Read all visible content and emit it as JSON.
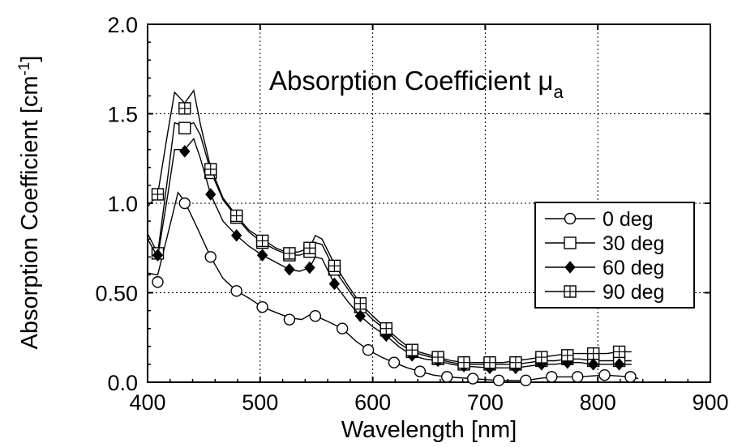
{
  "chart_data": {
    "type": "line",
    "title": "Absorption Coefficient",
    "title_symbol": "μ",
    "title_subscript": "a",
    "xlabel": "Wavelength [nm]",
    "ylabel": "Absorption Coefficient [cm",
    "ylabel_superscript": "-1",
    "ylabel_close": "]",
    "xlim": [
      400,
      900
    ],
    "ylim": [
      0,
      2.0
    ],
    "x_ticks": [
      "400",
      "500",
      "600",
      "700",
      "800",
      "900"
    ],
    "y_ticks": [
      "0.0",
      "0.50",
      "1.0",
      "1.5",
      "2.0"
    ],
    "grid": true,
    "legend_position": "center-right",
    "series": [
      {
        "name": "0 deg",
        "marker": "circle-open",
        "x": [
          409,
          433,
          456,
          479,
          502,
          526,
          549,
          573,
          596,
          619,
          642,
          666,
          689,
          712,
          736,
          759,
          782,
          806,
          829
        ],
        "y": [
          0.56,
          1.0,
          0.7,
          0.51,
          0.42,
          0.35,
          0.37,
          0.3,
          0.18,
          0.11,
          0.06,
          0.03,
          0.02,
          0.01,
          0.01,
          0.03,
          0.03,
          0.04,
          0.03
        ],
        "line_x": [
          400,
          409,
          420,
          427,
          433,
          445,
          456,
          467,
          479,
          490,
          502,
          514,
          526,
          537,
          545,
          549,
          560,
          573,
          585,
          596,
          608,
          619,
          631,
          642,
          654,
          666,
          677,
          689,
          700,
          712,
          724,
          736,
          747,
          759,
          771,
          782,
          794,
          806,
          818,
          829,
          836
        ],
        "line_y": [
          0.61,
          0.6,
          0.88,
          1.06,
          1.01,
          0.85,
          0.7,
          0.58,
          0.51,
          0.47,
          0.42,
          0.39,
          0.36,
          0.35,
          0.38,
          0.37,
          0.34,
          0.3,
          0.23,
          0.18,
          0.14,
          0.11,
          0.08,
          0.06,
          0.04,
          0.03,
          0.025,
          0.02,
          0.015,
          0.01,
          0.01,
          0.01,
          0.02,
          0.03,
          0.03,
          0.03,
          0.035,
          0.04,
          0.035,
          0.03,
          0.02
        ]
      },
      {
        "name": "30 deg",
        "marker": "square-open",
        "x": [
          409,
          433,
          456,
          479,
          502,
          526,
          544,
          566,
          589,
          612,
          635,
          658,
          681,
          704,
          727,
          750,
          773,
          796,
          819
        ],
        "y": [
          0.72,
          1.42,
          1.17,
          0.92,
          0.78,
          0.71,
          0.73,
          0.63,
          0.42,
          0.29,
          0.17,
          0.13,
          0.1,
          0.1,
          0.1,
          0.12,
          0.13,
          0.12,
          0.12
        ],
        "line_x": [
          400,
          409,
          418,
          424,
          433,
          441,
          447,
          456,
          467,
          479,
          490,
          502,
          514,
          526,
          535,
          544,
          549,
          555,
          566,
          578,
          589,
          600,
          612,
          623,
          635,
          646,
          658,
          670,
          681,
          693,
          704,
          716,
          727,
          739,
          750,
          762,
          773,
          784,
          796,
          808,
          819,
          830
        ],
        "line_y": [
          0.83,
          0.72,
          1.15,
          1.45,
          1.43,
          1.45,
          1.38,
          1.18,
          1.02,
          0.92,
          0.84,
          0.78,
          0.74,
          0.71,
          0.71,
          0.73,
          0.78,
          0.77,
          0.63,
          0.52,
          0.42,
          0.35,
          0.29,
          0.22,
          0.17,
          0.15,
          0.13,
          0.11,
          0.1,
          0.1,
          0.1,
          0.1,
          0.1,
          0.11,
          0.12,
          0.12,
          0.13,
          0.13,
          0.12,
          0.12,
          0.12,
          0.12
        ]
      },
      {
        "name": "60 deg",
        "marker": "diamond-filled",
        "x": [
          409,
          433,
          456,
          479,
          502,
          526,
          544,
          566,
          589,
          612,
          635,
          658,
          681,
          704,
          727,
          750,
          773,
          796,
          819
        ],
        "y": [
          0.71,
          1.29,
          1.05,
          0.82,
          0.71,
          0.63,
          0.64,
          0.55,
          0.37,
          0.26,
          0.15,
          0.12,
          0.09,
          0.08,
          0.08,
          0.1,
          0.11,
          0.1,
          0.1
        ],
        "line_x": [
          400,
          409,
          418,
          424,
          433,
          441,
          447,
          456,
          467,
          479,
          490,
          502,
          514,
          526,
          535,
          544,
          549,
          555,
          566,
          578,
          589,
          600,
          612,
          623,
          635,
          646,
          658,
          670,
          681,
          693,
          704,
          716,
          727,
          739,
          750,
          762,
          773,
          784,
          796,
          808,
          819,
          830
        ],
        "line_y": [
          0.8,
          0.7,
          1.05,
          1.3,
          1.3,
          1.36,
          1.25,
          1.05,
          0.9,
          0.82,
          0.76,
          0.71,
          0.67,
          0.63,
          0.62,
          0.64,
          0.7,
          0.69,
          0.55,
          0.45,
          0.37,
          0.31,
          0.26,
          0.2,
          0.15,
          0.13,
          0.12,
          0.1,
          0.09,
          0.085,
          0.08,
          0.08,
          0.08,
          0.09,
          0.1,
          0.1,
          0.11,
          0.11,
          0.1,
          0.1,
          0.1,
          0.1
        ]
      },
      {
        "name": "90 deg",
        "marker": "square-cross",
        "x": [
          409,
          433,
          456,
          479,
          502,
          526,
          544,
          566,
          589,
          612,
          635,
          658,
          681,
          704,
          727,
          750,
          773,
          796,
          819
        ],
        "y": [
          1.05,
          1.53,
          1.19,
          0.93,
          0.79,
          0.72,
          0.75,
          0.65,
          0.44,
          0.3,
          0.18,
          0.14,
          0.11,
          0.11,
          0.11,
          0.14,
          0.15,
          0.16,
          0.17
        ],
        "line_x": [
          400,
          409,
          418,
          424,
          433,
          441,
          447,
          456,
          467,
          479,
          490,
          502,
          514,
          526,
          535,
          544,
          549,
          555,
          566,
          578,
          589,
          600,
          612,
          623,
          635,
          646,
          658,
          670,
          681,
          693,
          704,
          716,
          727,
          739,
          750,
          762,
          773,
          784,
          796,
          808,
          819,
          830
        ],
        "line_y": [
          0.98,
          1.05,
          1.4,
          1.62,
          1.56,
          1.63,
          1.44,
          1.2,
          1.03,
          0.93,
          0.85,
          0.8,
          0.75,
          0.72,
          0.73,
          0.75,
          0.82,
          0.8,
          0.66,
          0.54,
          0.44,
          0.37,
          0.3,
          0.24,
          0.18,
          0.16,
          0.14,
          0.12,
          0.11,
          0.11,
          0.11,
          0.11,
          0.12,
          0.13,
          0.14,
          0.15,
          0.16,
          0.16,
          0.16,
          0.16,
          0.17,
          0.17
        ]
      }
    ]
  }
}
